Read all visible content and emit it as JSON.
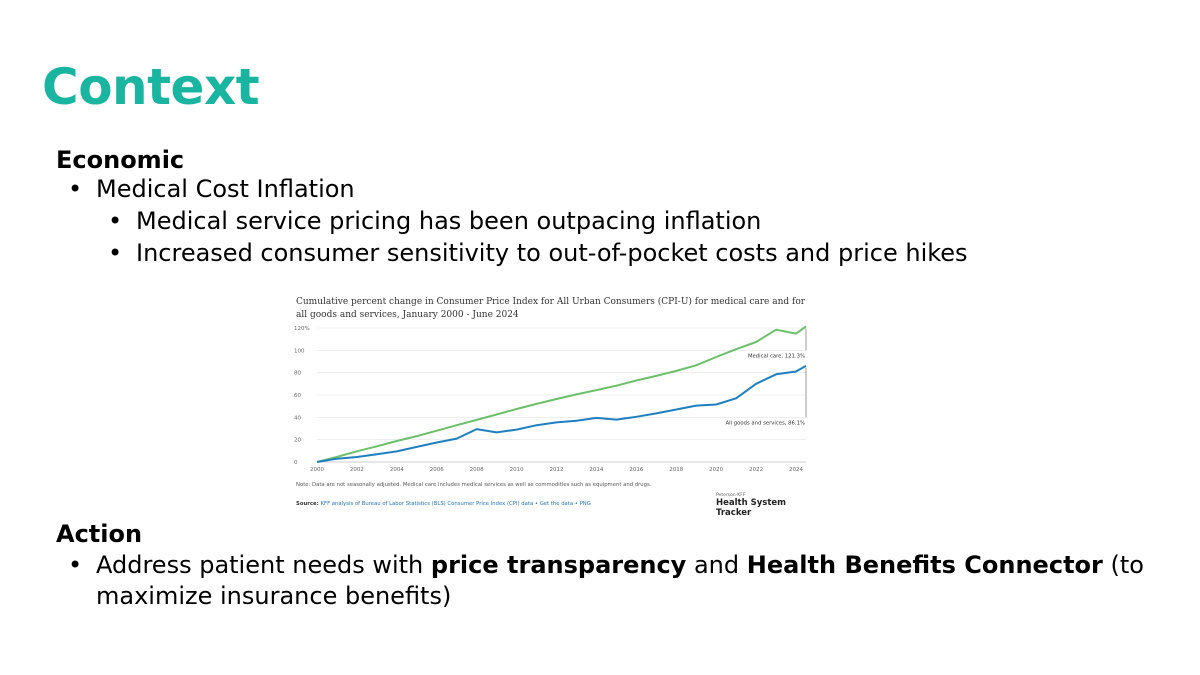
{
  "slide": {
    "title": "Context",
    "economic": {
      "heading": "Economic",
      "bullet": "Medical Cost Inflation",
      "sub_bullets": [
        "Medical service pricing has been outpacing inflation",
        "Increased consumer sensitivity to out-of-pocket costs and price hikes"
      ]
    },
    "action": {
      "heading": "Action",
      "text_1": "Address patient needs with ",
      "bold_1": "price transparency",
      "text_2": " and ",
      "bold_2": "Health Benefits Connector",
      "text_3": " (to",
      "line_2": "maximize insurance benefits)"
    },
    "accent_color": "#1ab5a0"
  },
  "chart_data": {
    "type": "line",
    "title": "Cumulative percent change in Consumer Price Index for All Urban Consumers (CPI-U) for medical care and for all goods and services, January 2000 - June 2024",
    "xlabel": "",
    "ylabel": "",
    "xlim": [
      2000,
      2024.5
    ],
    "ylim": [
      0,
      120
    ],
    "x_ticks": [
      "2000",
      "2002",
      "2004",
      "2006",
      "2008",
      "2010",
      "2012",
      "2014",
      "2016",
      "2018",
      "2020",
      "2022",
      "2024"
    ],
    "y_ticks": [
      "120%",
      "100",
      "80",
      "60",
      "40",
      "20",
      "0"
    ],
    "grid": true,
    "series": [
      {
        "name": "Medical care",
        "color": "#6cc06a",
        "annotation": "Medical care, 121.3%",
        "x": [
          2000,
          2001,
          2002,
          2003,
          2004,
          2005,
          2006,
          2007,
          2008,
          2009,
          2010,
          2011,
          2012,
          2013,
          2014,
          2015,
          2016,
          2017,
          2018,
          2019,
          2020,
          2021,
          2022,
          2023,
          2024,
          2024.5
        ],
        "values": [
          0,
          4.6,
          9.6,
          14.1,
          18.8,
          23.2,
          28.0,
          33.0,
          37.7,
          42.5,
          47.5,
          52.0,
          56.4,
          60.5,
          64.4,
          68.3,
          73.0,
          77.1,
          81.6,
          86.6,
          94.0,
          101.0,
          107.5,
          118.5,
          115.0,
          121.3
        ]
      },
      {
        "name": "All goods and services",
        "color": "#1f7fbf",
        "annotation": "All goods and services, 86.1%",
        "x": [
          2000,
          2001,
          2002,
          2003,
          2004,
          2005,
          2006,
          2007,
          2008,
          2009,
          2010,
          2011,
          2012,
          2013,
          2014,
          2015,
          2016,
          2017,
          2018,
          2019,
          2020,
          2021,
          2022,
          2023,
          2024,
          2024.5
        ],
        "values": [
          0,
          3.0,
          4.5,
          7.0,
          9.5,
          13.5,
          17.5,
          21.0,
          29.5,
          26.5,
          29.0,
          33.0,
          35.5,
          37.0,
          39.5,
          38.0,
          40.5,
          43.5,
          47.0,
          50.5,
          51.5,
          57.0,
          70.0,
          78.5,
          81.0,
          86.1
        ]
      }
    ],
    "note": "Note: Data are not seasonally adjusted. Medical care includes medical services as well as commodities such as equipment and drugs.",
    "source_prefix": "Source: ",
    "source_link": "KFF analysis of Bureau of Labor Statistics (BLS) Consumer Price Index (CPI) data",
    "source_links_extra": " • Get the data • PNG",
    "brand_small": "Peterson-KFF",
    "brand_main": "Health System Tracker"
  }
}
